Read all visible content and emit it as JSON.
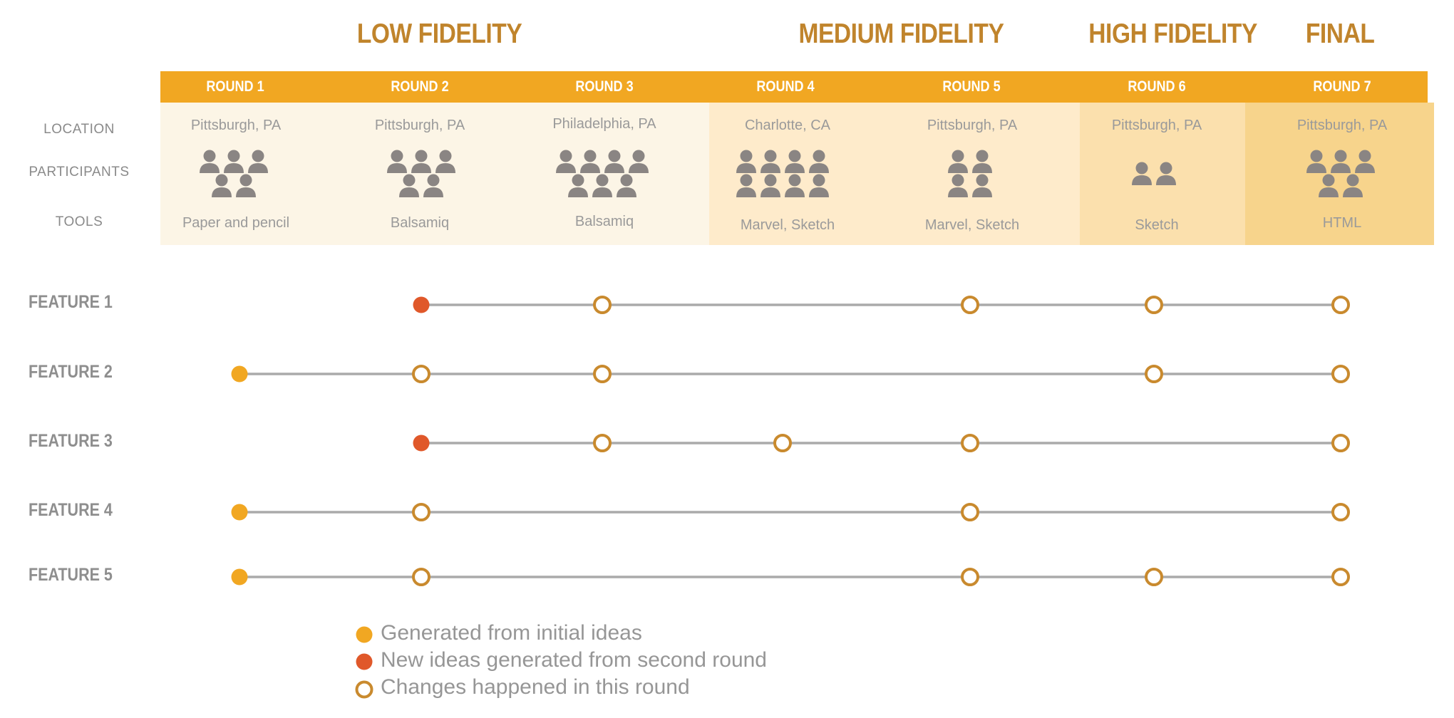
{
  "phases": [
    {
      "label": "LOW FIDELITY"
    },
    {
      "label": "MEDIUM FIDELITY"
    },
    {
      "label": "HIGH FIDELITY"
    },
    {
      "label": "FINAL"
    }
  ],
  "row_labels": {
    "location": "LOCATION",
    "participants": "PARTICIPANTS",
    "tools": "TOOLS"
  },
  "rounds": [
    {
      "label": "ROUND 1",
      "location": "Pittsburgh, PA",
      "participants": 5,
      "tools": "Paper and pencil"
    },
    {
      "label": "ROUND 2",
      "location": "Pittsburgh, PA",
      "participants": 5,
      "tools": "Balsamiq"
    },
    {
      "label": "ROUND 3",
      "location": "Philadelphia, PA",
      "participants": 7,
      "tools": "Balsamiq"
    },
    {
      "label": "ROUND 4",
      "location": "Charlotte, CA",
      "participants": 8,
      "tools": "Marvel, Sketch"
    },
    {
      "label": "ROUND 5",
      "location": "Pittsburgh, PA",
      "participants": 4,
      "tools": "Marvel, Sketch"
    },
    {
      "label": "ROUND 6",
      "location": "Pittsburgh, PA",
      "participants": 2,
      "tools": "Sketch"
    },
    {
      "label": "ROUND 7",
      "location": "Pittsburgh, PA",
      "participants": 5,
      "tools": "HTML"
    }
  ],
  "features": [
    {
      "label": "FEATURE 1",
      "start_round": 2,
      "start_type": "new",
      "change_rounds": [
        3,
        5,
        6,
        7
      ]
    },
    {
      "label": "FEATURE 2",
      "start_round": 1,
      "start_type": "initial",
      "change_rounds": [
        2,
        3,
        6,
        7
      ]
    },
    {
      "label": "FEATURE 3",
      "start_round": 2,
      "start_type": "new",
      "change_rounds": [
        3,
        4,
        5,
        7
      ]
    },
    {
      "label": "FEATURE 4",
      "start_round": 1,
      "start_type": "initial",
      "change_rounds": [
        2,
        5,
        7
      ]
    },
    {
      "label": "FEATURE 5",
      "start_round": 1,
      "start_type": "initial",
      "change_rounds": [
        2,
        5,
        6,
        7
      ]
    }
  ],
  "legend": [
    {
      "type": "initial",
      "label": "Generated from initial ideas"
    },
    {
      "type": "new",
      "label": "New ideas generated from second round"
    },
    {
      "type": "change",
      "label": "Changes happened in this round"
    }
  ],
  "colors": {
    "title": "#c0842c",
    "round_bar": "#f1a722",
    "initial": "#f1a722",
    "new": "#e0582a",
    "change_ring": "#c98a2e",
    "line": "#aaaaaa",
    "person": "#8a8583",
    "low_bg": "#fcf5e6",
    "medium_bg": "#feebcb",
    "high_bg": "#fbe0ad",
    "final_bg": "#f7d48c"
  }
}
